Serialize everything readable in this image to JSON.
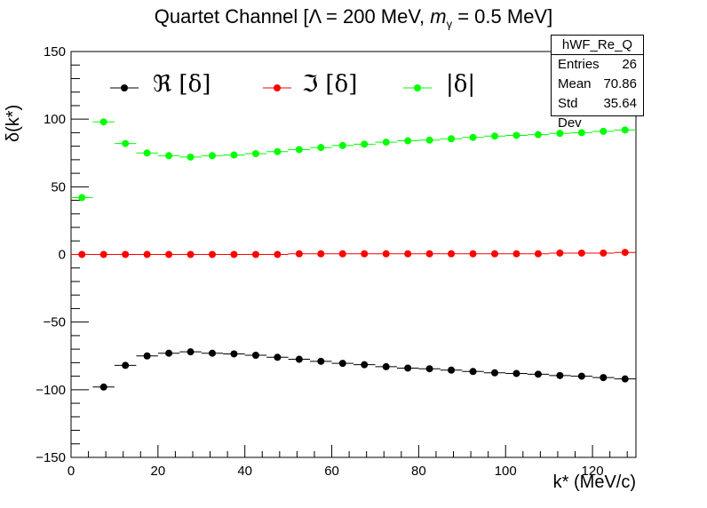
{
  "title": {
    "prefix": "Quartet Channel [Λ = 200 MeV, ",
    "m": "m",
    "sub": "γ",
    "suffix": " = 0.5 MeV]"
  },
  "stats": {
    "name": "hWF_Re_Q",
    "rows": [
      {
        "label": "Entries",
        "value": "26"
      },
      {
        "label": "Mean",
        "value": "70.86"
      },
      {
        "label": "Std Dev",
        "value": "35.64"
      }
    ]
  },
  "colors": {
    "real": "#000000",
    "imag": "#ff0000",
    "abs": "#00ff00"
  },
  "chart_data": {
    "type": "scatter",
    "xlabel": "k* (MeV/c)",
    "ylabel": "δ(k*)",
    "xlim": [
      0,
      130
    ],
    "ylim": [
      -150,
      150
    ],
    "x_ticks": [
      0,
      20,
      40,
      60,
      80,
      100,
      120
    ],
    "y_ticks": [
      -150,
      -100,
      -50,
      0,
      50,
      100,
      150
    ],
    "bin_width": 5,
    "x": [
      2.5,
      7.5,
      12.5,
      17.5,
      22.5,
      27.5,
      32.5,
      37.5,
      42.5,
      47.5,
      52.5,
      57.5,
      62.5,
      67.5,
      72.5,
      77.5,
      82.5,
      87.5,
      92.5,
      97.5,
      102.5,
      107.5,
      112.5,
      117.5,
      122.5,
      127.5
    ],
    "series": [
      {
        "name": "ℜ [δ]",
        "color": "#000000",
        "values": [
          null,
          -98,
          -82,
          -75,
          -73,
          -72,
          -73,
          -73.5,
          -74.5,
          -76,
          -77.5,
          -79,
          -80.5,
          -81.5,
          -83,
          -84,
          -84.5,
          -85.5,
          -86.5,
          -87.5,
          -88,
          -88.5,
          -89.5,
          -90,
          -91,
          -92
        ]
      },
      {
        "name": "ℑ [δ]",
        "color": "#ff0000",
        "values": [
          0,
          0,
          0,
          0,
          0,
          0,
          0,
          0,
          0,
          0,
          0.5,
          0.5,
          0.5,
          0.5,
          0.5,
          0.5,
          0.5,
          0.5,
          0.5,
          0.5,
          0.5,
          0.5,
          1,
          1,
          1,
          1.5
        ]
      },
      {
        "name": "|δ|",
        "color": "#00ff00",
        "values": [
          42,
          98,
          82,
          75,
          73,
          72,
          73,
          73.5,
          74.5,
          76,
          77.5,
          79,
          80.5,
          81.5,
          83,
          84,
          84.5,
          85.5,
          86.5,
          87.5,
          88,
          88.5,
          89.5,
          90,
          91,
          92
        ]
      }
    ]
  }
}
